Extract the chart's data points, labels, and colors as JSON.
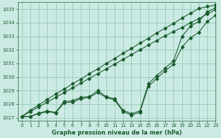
{
  "xlabel": "Graphe pression niveau de la mer (hPa)",
  "xlim": [
    -0.5,
    23
  ],
  "ylim": [
    1026.8,
    1035.5
  ],
  "yticks": [
    1027,
    1028,
    1029,
    1030,
    1031,
    1032,
    1033,
    1034,
    1035
  ],
  "xticks": [
    0,
    1,
    2,
    3,
    4,
    5,
    6,
    7,
    8,
    9,
    10,
    11,
    12,
    13,
    14,
    15,
    16,
    17,
    18,
    19,
    20,
    21,
    22,
    23
  ],
  "bg_color": "#cceae4",
  "grid_color": "#88c4aa",
  "line_color": "#1a5c2e",
  "line_straight1": [
    1027.1,
    1027.55,
    1027.95,
    1028.35,
    1028.75,
    1029.1,
    1029.5,
    1029.85,
    1030.25,
    1030.6,
    1031.0,
    1031.35,
    1031.75,
    1032.1,
    1032.5,
    1032.85,
    1033.25,
    1033.6,
    1033.95,
    1034.35,
    1034.7,
    1035.05,
    1035.2,
    1035.3
  ],
  "line_straight2": [
    1027.1,
    1027.45,
    1027.8,
    1028.15,
    1028.5,
    1028.85,
    1029.2,
    1029.55,
    1029.9,
    1030.25,
    1030.6,
    1030.95,
    1031.3,
    1031.65,
    1032.0,
    1032.35,
    1032.7,
    1033.05,
    1033.35,
    1033.65,
    1034.0,
    1034.3,
    1034.65,
    1034.95
  ],
  "line_wavy1": [
    1027.1,
    1027.1,
    1027.35,
    1027.5,
    1027.4,
    1028.2,
    1028.25,
    1028.5,
    1028.55,
    1029.0,
    1028.55,
    1028.4,
    1027.55,
    1027.3,
    1027.5,
    1029.5,
    1030.1,
    1030.65,
    1031.2,
    1033.0,
    1033.75,
    1034.1,
    1034.8,
    1035.1
  ],
  "line_wavy2": [
    1027.1,
    1027.1,
    1027.3,
    1027.45,
    1027.35,
    1028.1,
    1028.15,
    1028.4,
    1028.5,
    1028.85,
    1028.5,
    1028.3,
    1027.45,
    1027.2,
    1027.4,
    1029.3,
    1029.9,
    1030.45,
    1030.95,
    1032.2,
    1032.9,
    1033.3,
    1034.1,
    1034.55
  ]
}
